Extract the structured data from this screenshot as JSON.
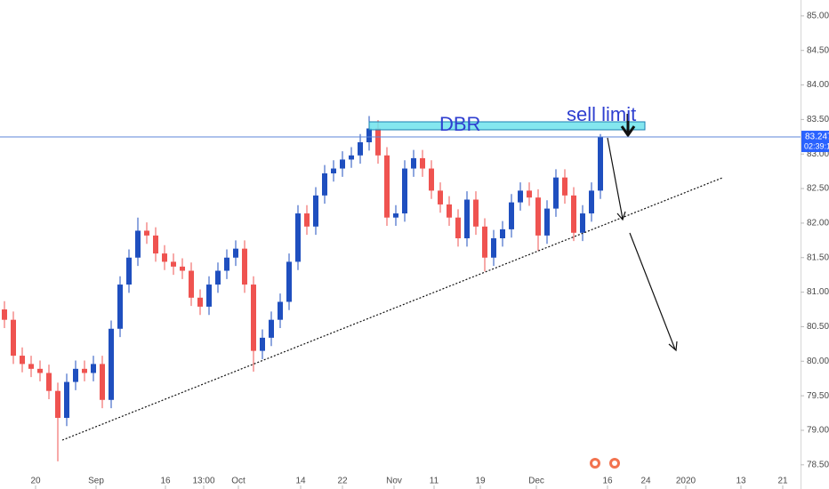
{
  "chart_data": {
    "type": "candlestick",
    "up_color": "#1f4fbf",
    "down_color": "#ef5350",
    "open": [
      80.75,
      80.6,
      80.08,
      79.96,
      79.89,
      79.83,
      79.57,
      79.18,
      79.7,
      79.89,
      79.83,
      79.96,
      79.44,
      80.47,
      81.11,
      81.5,
      81.89,
      81.82,
      81.56,
      81.44,
      81.37,
      81.31,
      80.92,
      80.79,
      81.11,
      81.31,
      81.5,
      81.63,
      81.11,
      80.15,
      80.34,
      80.6,
      80.86,
      81.44,
      82.14,
      81.95,
      82.4,
      82.72,
      82.79,
      82.92,
      82.98,
      83.17,
      83.37,
      82.98,
      82.08,
      82.14,
      82.79,
      82.94,
      82.79,
      82.47,
      82.27,
      82.08,
      81.78,
      82.34,
      81.95,
      81.5,
      81.78,
      81.91,
      82.3,
      82.47,
      82.37,
      81.82,
      82.21,
      82.66,
      82.4,
      81.86,
      82.14,
      82.47
    ],
    "high": [
      80.87,
      80.72,
      80.2,
      80.08,
      80.01,
      79.95,
      79.69,
      79.82,
      80.01,
      80.01,
      80.08,
      80.08,
      80.59,
      81.23,
      81.62,
      82.08,
      82.01,
      81.94,
      81.68,
      81.56,
      81.49,
      81.43,
      81.04,
      81.23,
      81.43,
      81.62,
      81.75,
      81.75,
      81.23,
      80.46,
      80.72,
      80.98,
      81.56,
      82.26,
      82.26,
      82.52,
      82.84,
      82.91,
      83.04,
      83.1,
      83.29,
      83.55,
      83.49,
      83.1,
      82.26,
      82.91,
      83.06,
      83.06,
      82.91,
      82.59,
      82.39,
      82.2,
      82.46,
      82.46,
      82.07,
      81.9,
      82.03,
      82.42,
      82.59,
      82.59,
      82.49,
      82.33,
      82.78,
      82.78,
      82.52,
      82.26,
      82.59,
      83.29
    ],
    "low": [
      80.48,
      79.96,
      79.84,
      79.77,
      79.71,
      79.45,
      78.55,
      79.06,
      79.58,
      79.71,
      79.71,
      79.32,
      79.32,
      80.35,
      80.99,
      81.38,
      81.7,
      81.44,
      81.32,
      81.25,
      81.19,
      80.8,
      80.67,
      80.67,
      80.99,
      81.19,
      81.38,
      80.99,
      79.85,
      80.03,
      80.22,
      80.48,
      80.74,
      81.32,
      81.83,
      81.83,
      82.28,
      82.6,
      82.67,
      82.8,
      82.86,
      83.05,
      82.86,
      81.96,
      81.96,
      82.02,
      82.67,
      82.67,
      82.35,
      82.15,
      81.96,
      81.66,
      81.66,
      81.83,
      81.3,
      81.38,
      81.66,
      81.79,
      82.18,
      82.25,
      81.6,
      81.7,
      82.09,
      82.28,
      81.74,
      81.74,
      82.02,
      82.35
    ],
    "close": [
      80.6,
      80.08,
      79.96,
      79.89,
      79.83,
      79.57,
      79.18,
      79.7,
      79.89,
      79.83,
      79.96,
      79.44,
      80.47,
      81.11,
      81.5,
      81.89,
      81.82,
      81.56,
      81.44,
      81.37,
      81.31,
      80.92,
      80.79,
      81.11,
      81.31,
      81.5,
      81.63,
      81.11,
      80.15,
      80.34,
      80.6,
      80.86,
      81.44,
      82.14,
      81.95,
      82.4,
      82.72,
      82.79,
      82.92,
      82.98,
      83.17,
      83.37,
      82.98,
      82.08,
      82.14,
      82.79,
      82.94,
      82.79,
      82.47,
      82.27,
      82.08,
      81.78,
      82.34,
      81.95,
      81.5,
      81.78,
      81.91,
      82.3,
      82.47,
      82.37,
      81.82,
      82.21,
      82.66,
      82.4,
      81.86,
      82.14,
      82.47,
      83.247
    ],
    "xlim": [
      -0.5,
      89.5
    ],
    "xticks": [
      {
        "value": 3.5,
        "label": "20"
      },
      {
        "value": 10.3,
        "label": "Sep"
      },
      {
        "value": 18.1,
        "label": "16"
      },
      {
        "value": 22.4,
        "label": "13:00"
      },
      {
        "value": 26.3,
        "label": "Oct"
      },
      {
        "value": 33.3,
        "label": "14"
      },
      {
        "value": 38,
        "label": "22"
      },
      {
        "value": 43.8,
        "label": "Nov"
      },
      {
        "value": 48.3,
        "label": "11"
      },
      {
        "value": 53.5,
        "label": "19"
      },
      {
        "value": 59.8,
        "label": "Dec"
      },
      {
        "value": 67.8,
        "label": "16"
      },
      {
        "value": 72.1,
        "label": "24"
      },
      {
        "value": 76.6,
        "label": "2020"
      },
      {
        "value": 82.8,
        "label": "13"
      },
      {
        "value": 87.5,
        "label": "21"
      }
    ],
    "ylim": [
      78.15,
      85.23
    ],
    "yticks": [
      {
        "value": 78.5,
        "label": "78.500"
      },
      {
        "value": 79,
        "label": "79.000"
      },
      {
        "value": 79.5,
        "label": "79.500"
      },
      {
        "value": 80,
        "label": "80.000"
      },
      {
        "value": 80.5,
        "label": "80.500"
      },
      {
        "value": 81,
        "label": "81.000"
      },
      {
        "value": 81.5,
        "label": "81.500"
      },
      {
        "value": 82,
        "label": "82.000"
      },
      {
        "value": 82.5,
        "label": "82.500"
      },
      {
        "value": 83,
        "label": "83.000"
      },
      {
        "value": 83.5,
        "label": "83.500"
      },
      {
        "value": 84,
        "label": "84.000"
      },
      {
        "value": 84.5,
        "label": "84.500"
      },
      {
        "value": 85,
        "label": "85.000"
      }
    ],
    "last_price": 83.247,
    "countdown": "02:39:18",
    "annotations": [
      "DBR",
      "sell limit"
    ]
  }
}
